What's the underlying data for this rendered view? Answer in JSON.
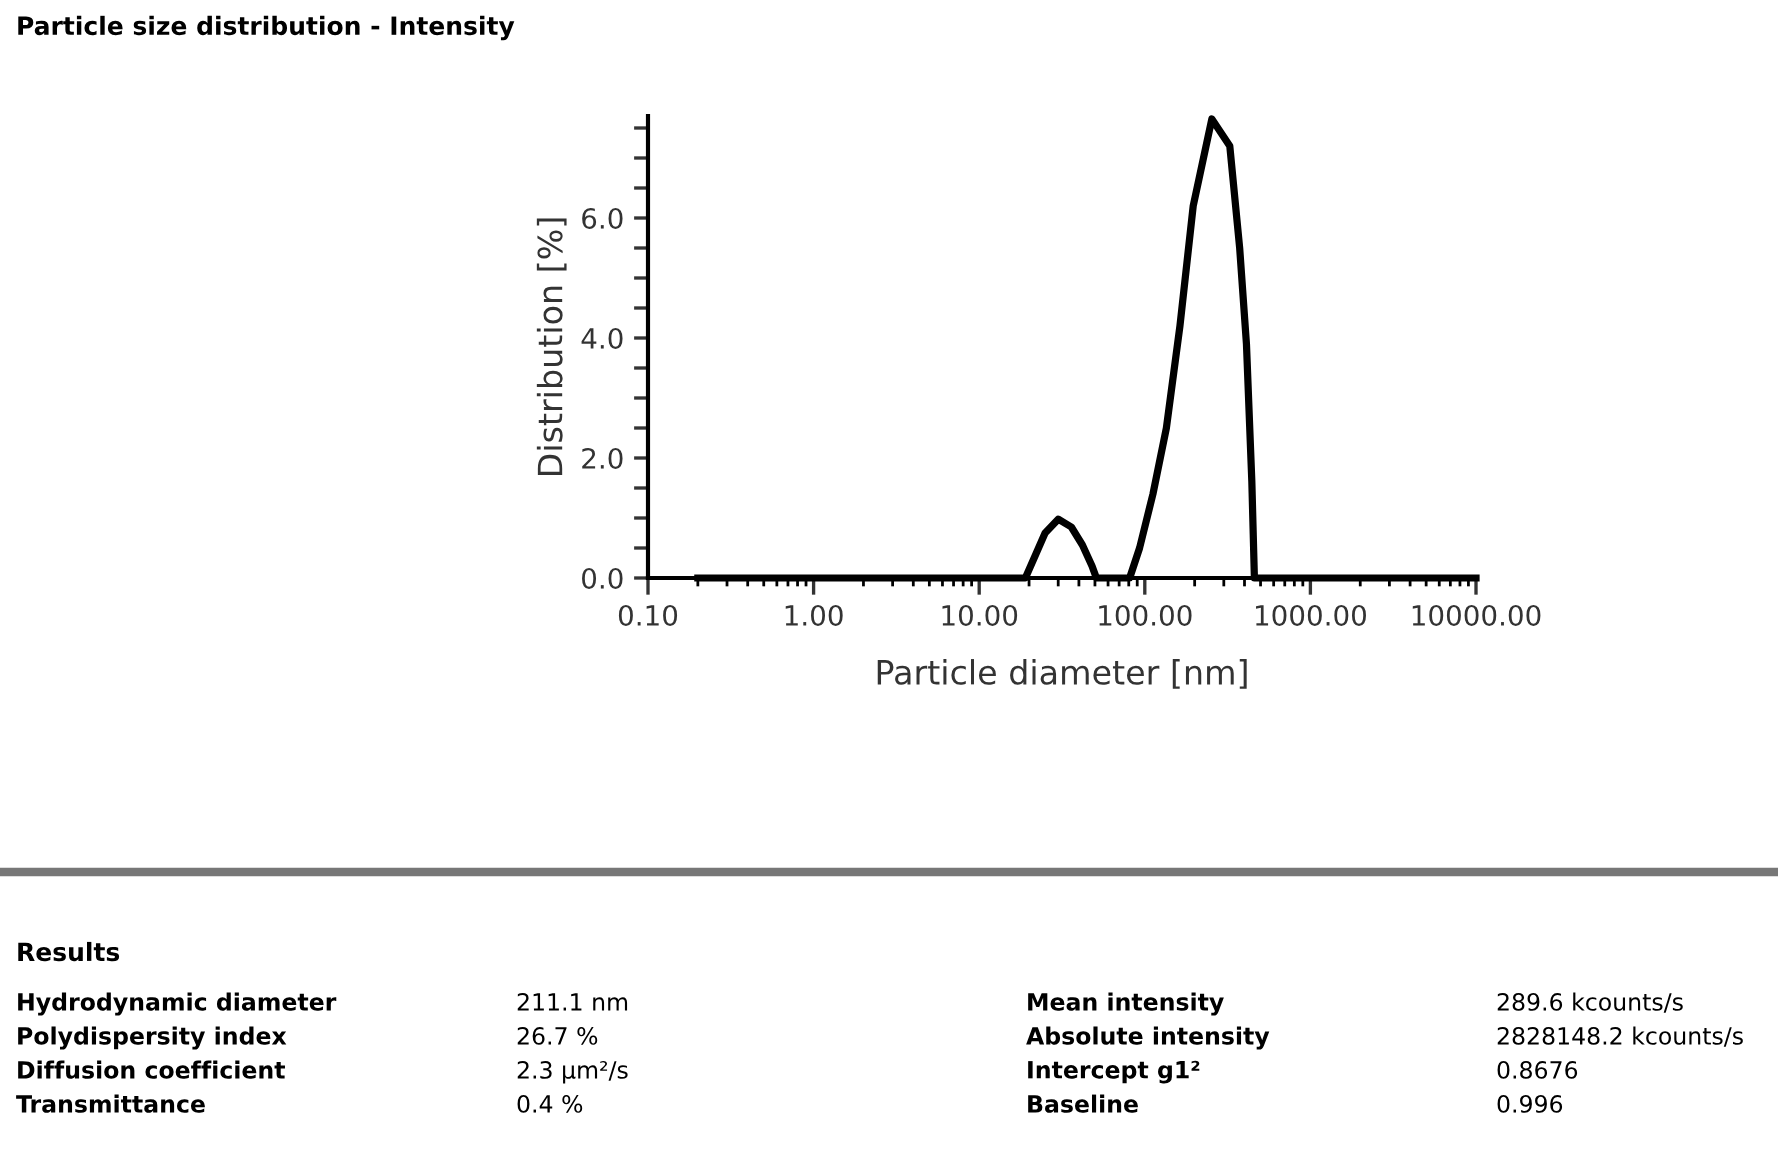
{
  "chart_data": {
    "type": "line",
    "title": "Particle size distribution - Intensity",
    "xlabel": "Particle diameter [nm]",
    "ylabel": "Distribution [%]",
    "log": "x",
    "xlim": [
      0.1,
      10000
    ],
    "xticks": [
      {
        "value": 0.1,
        "label": "0.10"
      },
      {
        "value": 1,
        "label": "1.00"
      },
      {
        "value": 10,
        "label": "10.00"
      },
      {
        "value": 100,
        "label": "100.00"
      },
      {
        "value": 1000,
        "label": "1000.00"
      },
      {
        "value": 10000,
        "label": "10000.00"
      }
    ],
    "ylim": [
      0,
      7.7
    ],
    "yticks": [
      {
        "value": 0,
        "label": "0.0"
      },
      {
        "value": 0.5,
        "label": null
      },
      {
        "value": 1,
        "label": null
      },
      {
        "value": 1.5,
        "label": null
      },
      {
        "value": 2,
        "label": "2.0"
      },
      {
        "value": 2.5,
        "label": null
      },
      {
        "value": 3,
        "label": null
      },
      {
        "value": 3.5,
        "label": null
      },
      {
        "value": 4,
        "label": "4.0"
      },
      {
        "value": 4.5,
        "label": null
      },
      {
        "value": 5,
        "label": null
      },
      {
        "value": 5.5,
        "label": null
      },
      {
        "value": 6,
        "label": "6.0"
      },
      {
        "value": 6.5,
        "label": null
      },
      {
        "value": 7,
        "label": null
      },
      {
        "value": 7.5,
        "label": null
      }
    ],
    "grid": false,
    "marker": "none",
    "line_style": "solid",
    "series": [
      {
        "color": "#000000",
        "x": [
          0.2,
          19,
          22,
          25,
          30,
          36,
          42,
          48,
          51,
          81,
          93,
          112,
          135,
          163,
          196,
          254,
          326,
          374,
          411,
          443,
          459,
          10000
        ],
        "values": [
          0,
          0,
          0.4,
          0.75,
          0.98,
          0.85,
          0.55,
          0.2,
          0,
          0,
          0.5,
          1.4,
          2.5,
          4.2,
          6.2,
          7.65,
          7.2,
          5.5,
          3.9,
          1.6,
          0,
          0
        ]
      }
    ],
    "annotations": [
      "Results",
      "Hydrodynamic diameter",
      "211.1 nm",
      "Mean intensity",
      "289.6 kcounts/s",
      "Polydispersity index",
      "26.7 %",
      "Absolute intensity",
      "2828148.2 kcounts/s",
      "Diffusion coefficient",
      "2.3 µm²/s",
      "Intercept g1²",
      "0.8676",
      "Transmittance",
      "0.4 %",
      "Baseline",
      "0.996"
    ]
  }
}
